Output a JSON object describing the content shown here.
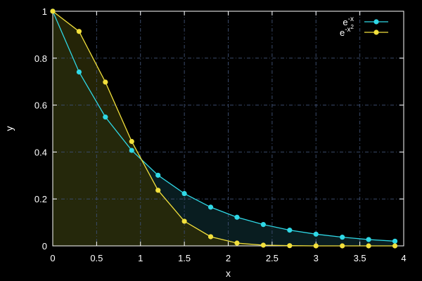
{
  "chart_data": {
    "type": "line",
    "title": "",
    "xlabel": "x",
    "ylabel": "y",
    "xlim": [
      0,
      4
    ],
    "ylim": [
      0,
      1
    ],
    "xticks": [
      "0",
      "0.5",
      "1",
      "1.5",
      "2",
      "2.5",
      "3",
      "3.5",
      "4"
    ],
    "xtick_values": [
      0,
      0.5,
      1,
      1.5,
      2,
      2.5,
      3,
      3.5,
      4
    ],
    "yticks": [
      "0",
      "0.2",
      "0.4",
      "0.6",
      "0.8",
      "1"
    ],
    "ytick_values": [
      0,
      0.2,
      0.4,
      0.6,
      0.8,
      1
    ],
    "grid": true,
    "legend_position": "top-right",
    "background_color": "#000000",
    "axis_color": "#ffffff",
    "grid_color": "#3a4a6a",
    "x": [
      0,
      0.3,
      0.6,
      0.9,
      1.2,
      1.5,
      1.8,
      2.1,
      2.4,
      2.7,
      3.0,
      3.3,
      3.6,
      3.9
    ],
    "series": [
      {
        "legend_base": "e",
        "legend_exp": "-x",
        "legend_exp_sup": "",
        "color": "#2fd8e6",
        "fill_color": "#0b2226",
        "values": [
          1.0,
          0.741,
          0.549,
          0.407,
          0.301,
          0.223,
          0.165,
          0.122,
          0.091,
          0.067,
          0.05,
          0.037,
          0.027,
          0.02
        ]
      },
      {
        "legend_base": "e",
        "legend_exp": "-x",
        "legend_exp_sup": "2",
        "color": "#f2e03c",
        "fill_color": "#2a2a08",
        "values": [
          1.0,
          0.914,
          0.698,
          0.445,
          0.237,
          0.105,
          0.039,
          0.012,
          0.003,
          0.001,
          0.0,
          0.0,
          0.0,
          0.0
        ]
      }
    ]
  }
}
